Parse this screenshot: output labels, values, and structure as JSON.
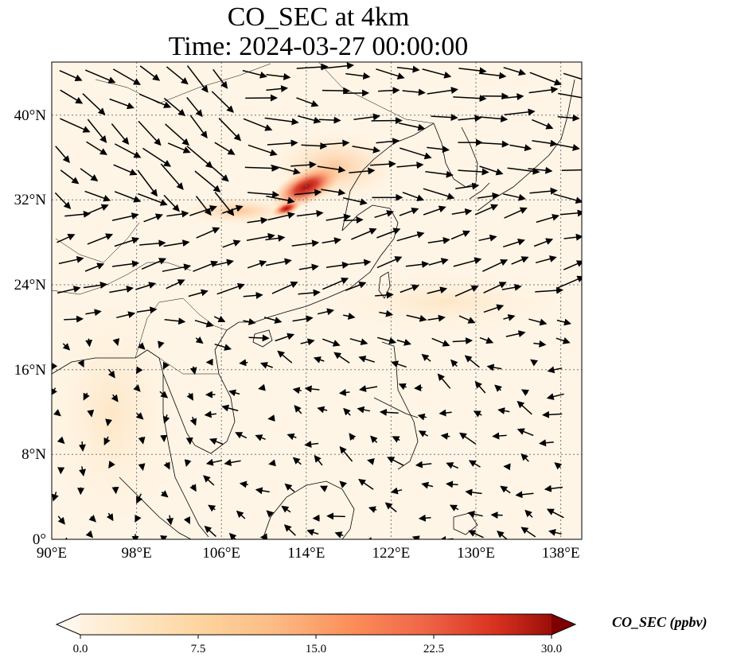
{
  "title_line1": "CO_SEC at 4km",
  "title_line2": "Time: 2024-03-27 00:00:00",
  "lon_ticks": [
    "90°E",
    "98°E",
    "106°E",
    "114°E",
    "122°E",
    "130°E",
    "138°E"
  ],
  "lat_ticks": [
    "0°",
    "8°N",
    "16°N",
    "24°N",
    "32°N",
    "40°N"
  ],
  "colorbar": {
    "label": "CO_SEC (ppbv)",
    "ticks": [
      "0.0",
      "7.5",
      "15.0",
      "22.5",
      "30.0"
    ],
    "min": 0,
    "max": 30,
    "colormap": "OrRd",
    "colors": [
      "#fff7ec",
      "#fee8c8",
      "#fdd49e",
      "#fdbb84",
      "#fc8d59",
      "#ef6548",
      "#d7301f",
      "#b30000",
      "#7f0000"
    ],
    "extend": "both"
  },
  "map": {
    "lon_range": [
      90,
      140
    ],
    "lat_range": [
      0,
      45
    ],
    "gridlines": "dotted",
    "coastlines": true,
    "borders": true,
    "wind_vectors": true
  }
}
